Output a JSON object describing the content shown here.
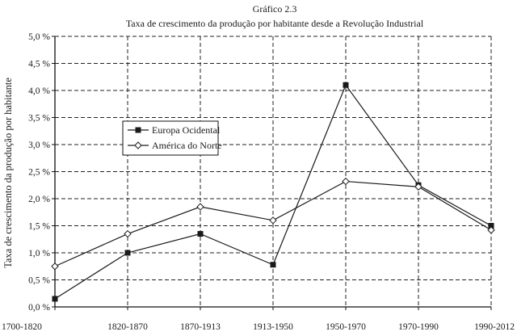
{
  "chart_data": {
    "type": "line",
    "title": "Gráfico 2.3",
    "subtitle": "Taxa de crescimento da produção por habitante desde a Revolução Industrial",
    "xlabel": "",
    "ylabel": "Taxa de crescimento da produção por habitante",
    "categories": [
      "1700-1820",
      "1820-1870",
      "1870-1913",
      "1913-1950",
      "1950-1970",
      "1970-1990",
      "1990-2012"
    ],
    "ylim": [
      0,
      5.0
    ],
    "yticks": [
      "0,0 %",
      "0,5 %",
      "1,0 %",
      "1,5 %",
      "2,0 %",
      "2,5 %",
      "3,0 %",
      "3,5 %",
      "4,0 %",
      "4,5 %",
      "5,0 %"
    ],
    "grid": true,
    "legend_position": "upper-left",
    "series": [
      {
        "name": "Europa Ocidental",
        "marker": "filled-square",
        "values": [
          0.15,
          1.0,
          1.35,
          0.78,
          4.1,
          2.25,
          1.5
        ]
      },
      {
        "name": "América do Norte",
        "marker": "open-diamond",
        "values": [
          0.75,
          1.35,
          1.85,
          1.6,
          2.32,
          2.22,
          1.42
        ]
      }
    ]
  }
}
